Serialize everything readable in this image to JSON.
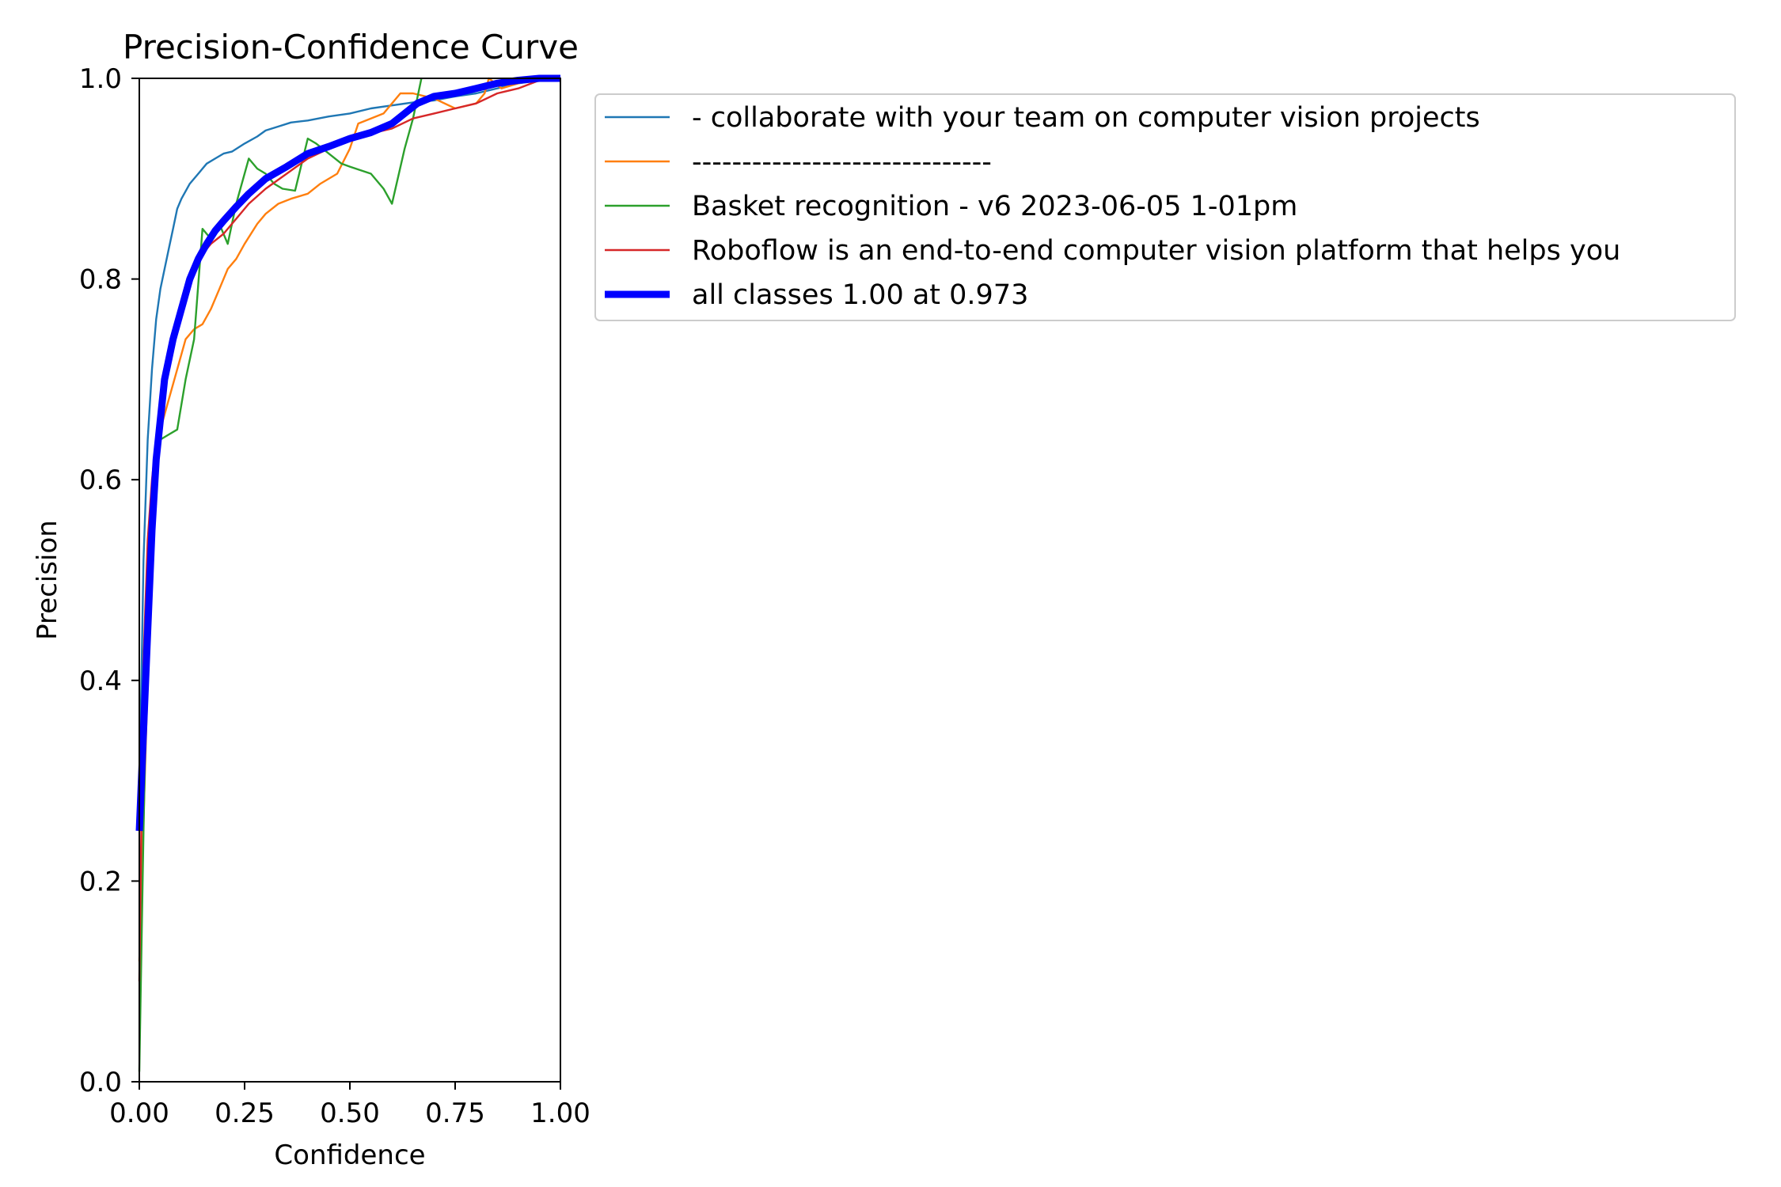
{
  "chart_data": {
    "type": "line",
    "title": "Precision-Confidence Curve",
    "xlabel": "Confidence",
    "ylabel": "Precision",
    "xlim": [
      0,
      1
    ],
    "ylim": [
      0,
      1
    ],
    "x_ticks": [
      "0.00",
      "0.25",
      "0.50",
      "0.75",
      "1.00"
    ],
    "y_ticks": [
      "0.0",
      "0.2",
      "0.4",
      "0.6",
      "0.8",
      "1.0"
    ],
    "grid": false,
    "legend_position": "outside-right",
    "series": [
      {
        "name": "- collaborate with your team on computer vision projects",
        "color": "#1f77b4",
        "points": [
          [
            0,
            0.28
          ],
          [
            0.01,
            0.52
          ],
          [
            0.02,
            0.64
          ],
          [
            0.03,
            0.71
          ],
          [
            0.04,
            0.76
          ],
          [
            0.05,
            0.79
          ],
          [
            0.06,
            0.81
          ],
          [
            0.07,
            0.83
          ],
          [
            0.08,
            0.85
          ],
          [
            0.09,
            0.87
          ],
          [
            0.1,
            0.88
          ],
          [
            0.12,
            0.895
          ],
          [
            0.14,
            0.905
          ],
          [
            0.16,
            0.915
          ],
          [
            0.18,
            0.92
          ],
          [
            0.2,
            0.925
          ],
          [
            0.22,
            0.927
          ],
          [
            0.25,
            0.935
          ],
          [
            0.28,
            0.942
          ],
          [
            0.3,
            0.948
          ],
          [
            0.33,
            0.952
          ],
          [
            0.36,
            0.956
          ],
          [
            0.4,
            0.958
          ],
          [
            0.45,
            0.962
          ],
          [
            0.5,
            0.965
          ],
          [
            0.55,
            0.97
          ],
          [
            0.6,
            0.973
          ],
          [
            0.65,
            0.976
          ],
          [
            0.7,
            0.978
          ],
          [
            0.75,
            0.982
          ],
          [
            0.8,
            0.985
          ],
          [
            0.85,
            0.99
          ],
          [
            0.9,
            0.995
          ],
          [
            0.95,
            0.998
          ],
          [
            1.0,
            1.0
          ]
        ]
      },
      {
        "name": "------------------------------",
        "color": "#ff7f0e",
        "points": [
          [
            0,
            0.12
          ],
          [
            0.02,
            0.4
          ],
          [
            0.03,
            0.52
          ],
          [
            0.04,
            0.6
          ],
          [
            0.05,
            0.65
          ],
          [
            0.07,
            0.68
          ],
          [
            0.09,
            0.71
          ],
          [
            0.11,
            0.74
          ],
          [
            0.13,
            0.75
          ],
          [
            0.15,
            0.755
          ],
          [
            0.17,
            0.77
          ],
          [
            0.19,
            0.79
          ],
          [
            0.21,
            0.81
          ],
          [
            0.23,
            0.82
          ],
          [
            0.25,
            0.835
          ],
          [
            0.28,
            0.855
          ],
          [
            0.3,
            0.865
          ],
          [
            0.33,
            0.875
          ],
          [
            0.36,
            0.88
          ],
          [
            0.4,
            0.885
          ],
          [
            0.43,
            0.895
          ],
          [
            0.47,
            0.905
          ],
          [
            0.5,
            0.93
          ],
          [
            0.52,
            0.955
          ],
          [
            0.55,
            0.96
          ],
          [
            0.58,
            0.965
          ],
          [
            0.6,
            0.975
          ],
          [
            0.62,
            0.985
          ],
          [
            0.65,
            0.985
          ],
          [
            0.7,
            0.98
          ],
          [
            0.75,
            0.97
          ],
          [
            0.8,
            0.975
          ],
          [
            0.82,
            0.985
          ],
          [
            0.83,
            1.0
          ],
          [
            0.86,
            0.99
          ],
          [
            0.9,
            0.995
          ],
          [
            0.95,
            1.0
          ],
          [
            1.0,
            1.0
          ]
        ]
      },
      {
        "name": "Basket recognition - v6 2023-06-05 1-01pm",
        "color": "#2ca02c",
        "points": [
          [
            0,
            0.01
          ],
          [
            0.01,
            0.25
          ],
          [
            0.02,
            0.45
          ],
          [
            0.03,
            0.58
          ],
          [
            0.05,
            0.64
          ],
          [
            0.07,
            0.645
          ],
          [
            0.09,
            0.65
          ],
          [
            0.11,
            0.7
          ],
          [
            0.13,
            0.74
          ],
          [
            0.15,
            0.85
          ],
          [
            0.17,
            0.84
          ],
          [
            0.19,
            0.855
          ],
          [
            0.21,
            0.835
          ],
          [
            0.23,
            0.875
          ],
          [
            0.26,
            0.92
          ],
          [
            0.28,
            0.91
          ],
          [
            0.3,
            0.905
          ],
          [
            0.32,
            0.895
          ],
          [
            0.34,
            0.89
          ],
          [
            0.37,
            0.888
          ],
          [
            0.4,
            0.94
          ],
          [
            0.42,
            0.935
          ],
          [
            0.45,
            0.925
          ],
          [
            0.48,
            0.915
          ],
          [
            0.5,
            0.912
          ],
          [
            0.55,
            0.905
          ],
          [
            0.58,
            0.89
          ],
          [
            0.6,
            0.875
          ],
          [
            0.63,
            0.93
          ],
          [
            0.65,
            0.96
          ],
          [
            0.67,
            1.0
          ]
        ]
      },
      {
        "name": "Roboflow is an end-to-end computer vision platform that helps you",
        "color": "#d62728",
        "points": [
          [
            0,
            0.1
          ],
          [
            0.01,
            0.42
          ],
          [
            0.02,
            0.54
          ],
          [
            0.03,
            0.6
          ],
          [
            0.04,
            0.64
          ],
          [
            0.05,
            0.67
          ],
          [
            0.07,
            0.72
          ],
          [
            0.09,
            0.76
          ],
          [
            0.11,
            0.79
          ],
          [
            0.13,
            0.815
          ],
          [
            0.15,
            0.825
          ],
          [
            0.17,
            0.835
          ],
          [
            0.2,
            0.845
          ],
          [
            0.23,
            0.86
          ],
          [
            0.26,
            0.875
          ],
          [
            0.3,
            0.89
          ],
          [
            0.35,
            0.905
          ],
          [
            0.4,
            0.92
          ],
          [
            0.45,
            0.93
          ],
          [
            0.5,
            0.94
          ],
          [
            0.55,
            0.945
          ],
          [
            0.6,
            0.95
          ],
          [
            0.65,
            0.96
          ],
          [
            0.7,
            0.965
          ],
          [
            0.75,
            0.97
          ],
          [
            0.8,
            0.975
          ],
          [
            0.85,
            0.985
          ],
          [
            0.9,
            0.99
          ],
          [
            0.95,
            0.998
          ],
          [
            1.0,
            1.0
          ]
        ]
      },
      {
        "name": "all classes 1.00 at 0.973",
        "color": "#0000ff",
        "bold": true,
        "points": [
          [
            0,
            0.25
          ],
          [
            0.01,
            0.35
          ],
          [
            0.02,
            0.45
          ],
          [
            0.03,
            0.55
          ],
          [
            0.04,
            0.62
          ],
          [
            0.05,
            0.66
          ],
          [
            0.06,
            0.7
          ],
          [
            0.08,
            0.74
          ],
          [
            0.1,
            0.77
          ],
          [
            0.12,
            0.8
          ],
          [
            0.14,
            0.82
          ],
          [
            0.16,
            0.835
          ],
          [
            0.18,
            0.848
          ],
          [
            0.2,
            0.858
          ],
          [
            0.23,
            0.872
          ],
          [
            0.26,
            0.885
          ],
          [
            0.3,
            0.9
          ],
          [
            0.35,
            0.912
          ],
          [
            0.4,
            0.925
          ],
          [
            0.45,
            0.932
          ],
          [
            0.5,
            0.94
          ],
          [
            0.55,
            0.946
          ],
          [
            0.6,
            0.955
          ],
          [
            0.63,
            0.965
          ],
          [
            0.66,
            0.975
          ],
          [
            0.7,
            0.982
          ],
          [
            0.75,
            0.985
          ],
          [
            0.8,
            0.99
          ],
          [
            0.85,
            0.995
          ],
          [
            0.9,
            0.998
          ],
          [
            0.95,
            1.0
          ],
          [
            1.0,
            1.0
          ]
        ]
      }
    ]
  }
}
